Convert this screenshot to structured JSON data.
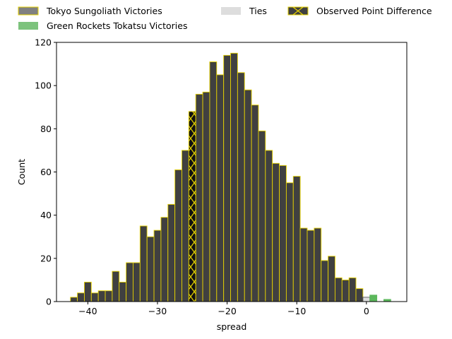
{
  "chart_data": {
    "type": "bar",
    "title": "",
    "xlabel": "spread",
    "ylabel": "Count",
    "xlim": [
      -44.5,
      5.8
    ],
    "ylim": [
      0,
      120
    ],
    "xticks": [
      -40,
      -30,
      -20,
      -10,
      0
    ],
    "yticks": [
      0,
      20,
      40,
      60,
      80,
      100,
      120
    ],
    "bin_width": 1,
    "grid": false,
    "legend_placement": "top, outside plot, 3 columns",
    "colors": {
      "tokyo": "#404040",
      "tokyo_legend": "#808080",
      "green": "#5cb85c",
      "green_legend": "#7dc37d",
      "ties": "#dddddd",
      "edge": "#e6d200",
      "observed": "#111111",
      "observed_hatch": "#e6d200"
    },
    "legend": [
      {
        "label": "Tokyo Sungoliath Victories",
        "swatch": "tokyo"
      },
      {
        "label": "Green Rockets Tokatsu Victories",
        "swatch": "green"
      },
      {
        "label": "Ties",
        "swatch": "ties"
      },
      {
        "label": "Observed Point Difference",
        "swatch": "observed"
      }
    ],
    "series": [
      {
        "name": "Tokyo Sungoliath Victories",
        "x": [
          -42,
          -41,
          -40,
          -39,
          -38,
          -37,
          -36,
          -35,
          -34,
          -33,
          -32,
          -31,
          -30,
          -29,
          -28,
          -27,
          -26,
          -25,
          -24,
          -23,
          -22,
          -21,
          -20,
          -19,
          -18,
          -17,
          -16,
          -15,
          -14,
          -13,
          -12,
          -11,
          -10,
          -9,
          -8,
          -7,
          -6,
          -5,
          -4,
          -3,
          -2,
          -1
        ],
        "values": [
          2,
          4,
          9,
          4,
          5,
          5,
          14,
          9,
          18,
          18,
          35,
          30,
          33,
          39,
          45,
          61,
          70,
          88,
          96,
          97,
          111,
          105,
          114,
          115,
          106,
          98,
          91,
          79,
          70,
          64,
          63,
          55,
          58,
          34,
          33,
          34,
          19,
          21,
          11,
          10,
          11,
          6
        ]
      },
      {
        "name": "Ties",
        "x": [
          0
        ],
        "values": [
          2
        ]
      },
      {
        "name": "Green Rockets Tokatsu Victories",
        "x": [
          1,
          3
        ],
        "values": [
          3,
          1
        ]
      }
    ],
    "observed_x": -25
  }
}
